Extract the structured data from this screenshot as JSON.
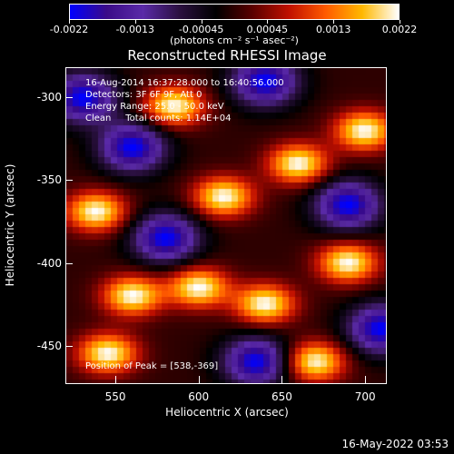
{
  "colorbar": {
    "ticks": [
      "-0.0022",
      "-0.0013",
      "-0.00045",
      "0.00045",
      "0.0013",
      "0.0022"
    ],
    "units": "(photons cm⁻² s⁻¹ asec⁻²)",
    "colors": [
      "#0000ff",
      "#3a0b88",
      "#5a2aa8",
      "#2b1040",
      "#000000",
      "#5a0000",
      "#c01000",
      "#ff5a00",
      "#ffb800",
      "#ffffff"
    ]
  },
  "plot": {
    "title": "Reconstructed RHESSI Image",
    "info_lines": [
      "16-Aug-2014 16:37:28.000 to 16:40:56.000",
      "Detectors: 3F 6F 9F, Att 0",
      "Energy Range: 25.0 - 50.0 keV",
      "Clean     Total counts: 1.14E+04"
    ],
    "peak": "Position of Peak = [538,-369]",
    "xlabel": "Heliocentric X (arcsec)",
    "ylabel": "Heliocentric Y (arcsec)",
    "xticks": [
      "550",
      "600",
      "650",
      "700"
    ],
    "yticks": [
      "-300",
      "-350",
      "-400",
      "-450"
    ]
  },
  "chart_data": {
    "type": "heatmap",
    "title": "Reconstructed RHESSI Image",
    "xlabel": "Heliocentric X (arcsec)",
    "ylabel": "Heliocentric Y (arcsec)",
    "xlim": [
      520,
      713
    ],
    "ylim": [
      -473,
      -282
    ],
    "zlim": [
      -0.0022,
      0.0022
    ],
    "bright_peaks": [
      {
        "x": 538,
        "y": -369
      },
      {
        "x": 585,
        "y": -305
      },
      {
        "x": 615,
        "y": -360
      },
      {
        "x": 660,
        "y": -340
      },
      {
        "x": 700,
        "y": -320
      },
      {
        "x": 545,
        "y": -455
      },
      {
        "x": 600,
        "y": -415
      },
      {
        "x": 640,
        "y": -425
      },
      {
        "x": 690,
        "y": -400
      },
      {
        "x": 670,
        "y": -460
      },
      {
        "x": 560,
        "y": -420
      }
    ],
    "dark_wells": [
      {
        "x": 530,
        "y": -300
      },
      {
        "x": 580,
        "y": -385
      },
      {
        "x": 640,
        "y": -290
      },
      {
        "x": 560,
        "y": -330
      },
      {
        "x": 690,
        "y": -365
      },
      {
        "x": 635,
        "y": -460
      },
      {
        "x": 710,
        "y": -440
      }
    ]
  },
  "timestamp": "16-May-2022 03:53"
}
